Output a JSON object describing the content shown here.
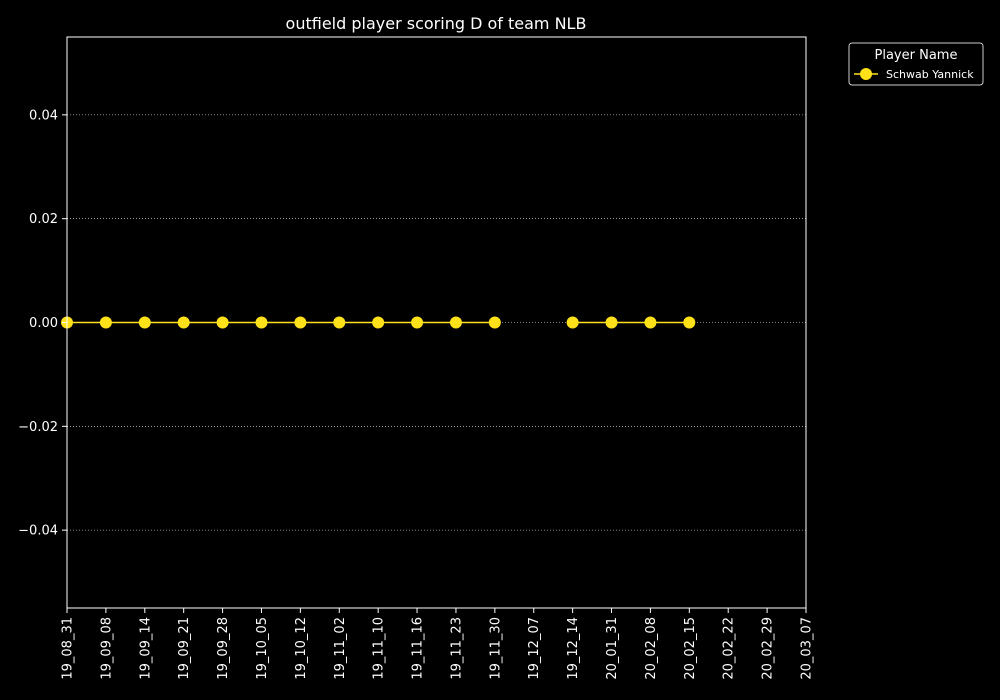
{
  "chart_data": {
    "type": "line",
    "title": "outfield player scoring D of team NLB",
    "xlabel": "",
    "ylabel": "",
    "categories": [
      "19_08_31",
      "19_09_08",
      "19_09_14",
      "19_09_21",
      "19_09_28",
      "19_10_05",
      "19_10_12",
      "19_11_02",
      "19_11_10",
      "19_11_16",
      "19_11_23",
      "19_11_30",
      "19_12_07",
      "19_12_14",
      "20_01_31",
      "20_02_08",
      "20_02_15",
      "20_02_22",
      "20_02_29",
      "20_03_07"
    ],
    "series": [
      {
        "name": "Schwab Yannick",
        "color": "#ffe119",
        "values": [
          0,
          0,
          0,
          0,
          0,
          0,
          0,
          0,
          0,
          0,
          0,
          0,
          null,
          0,
          0,
          0,
          0,
          null,
          null,
          null
        ]
      }
    ],
    "ylim": [
      -0.055,
      0.055
    ],
    "yticks": [
      -0.04,
      -0.02,
      0.0,
      0.02,
      0.04
    ],
    "ytick_labels": [
      "−0.04",
      "−0.02",
      "0.00",
      "0.02",
      "0.04"
    ],
    "grid": "horizontal dotted",
    "legend": {
      "title": "Player Name",
      "placement": "outside top-right"
    }
  }
}
